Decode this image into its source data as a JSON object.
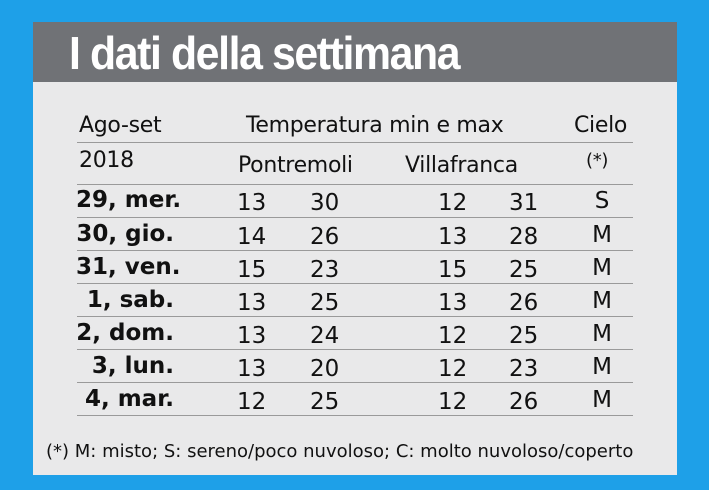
{
  "title": "I dati della settimana",
  "header": {
    "period": "Ago-set",
    "year": "2018",
    "temperature": "Temperatura min e max",
    "sky": "Cielo",
    "location1": "Pontremoli",
    "location2": "Villafranca",
    "sky_note": "(*)"
  },
  "rows": [
    {
      "day": "29, mer.",
      "p_min": "13",
      "p_max": "30",
      "v_min": "12",
      "v_max": "31",
      "sky": "S"
    },
    {
      "day": "30, gio.",
      "p_min": "14",
      "p_max": "26",
      "v_min": "13",
      "v_max": "28",
      "sky": "M"
    },
    {
      "day": "31, ven.",
      "p_min": "15",
      "p_max": "23",
      "v_min": "15",
      "v_max": "25",
      "sky": "M"
    },
    {
      "day": "1, sab.",
      "p_min": "13",
      "p_max": "25",
      "v_min": "13",
      "v_max": "26",
      "sky": "M"
    },
    {
      "day": "2, dom.",
      "p_min": "13",
      "p_max": "24",
      "v_min": "12",
      "v_max": "25",
      "sky": "M"
    },
    {
      "day": "3, lun.",
      "p_min": "13",
      "p_max": "20",
      "v_min": "12",
      "v_max": "23",
      "sky": "M"
    },
    {
      "day": "4, mar.",
      "p_min": "12",
      "p_max": "25",
      "v_min": "12",
      "v_max": "26",
      "sky": "M"
    }
  ],
  "footnote": "(*) M: misto; S: sereno/poco nuvoloso; C: molto nuvoloso/coperto",
  "colors": {
    "background": "#1ea0e8",
    "title_bar": "#707276",
    "card": "#e9e9ea",
    "rule": "#9a9a9a"
  }
}
